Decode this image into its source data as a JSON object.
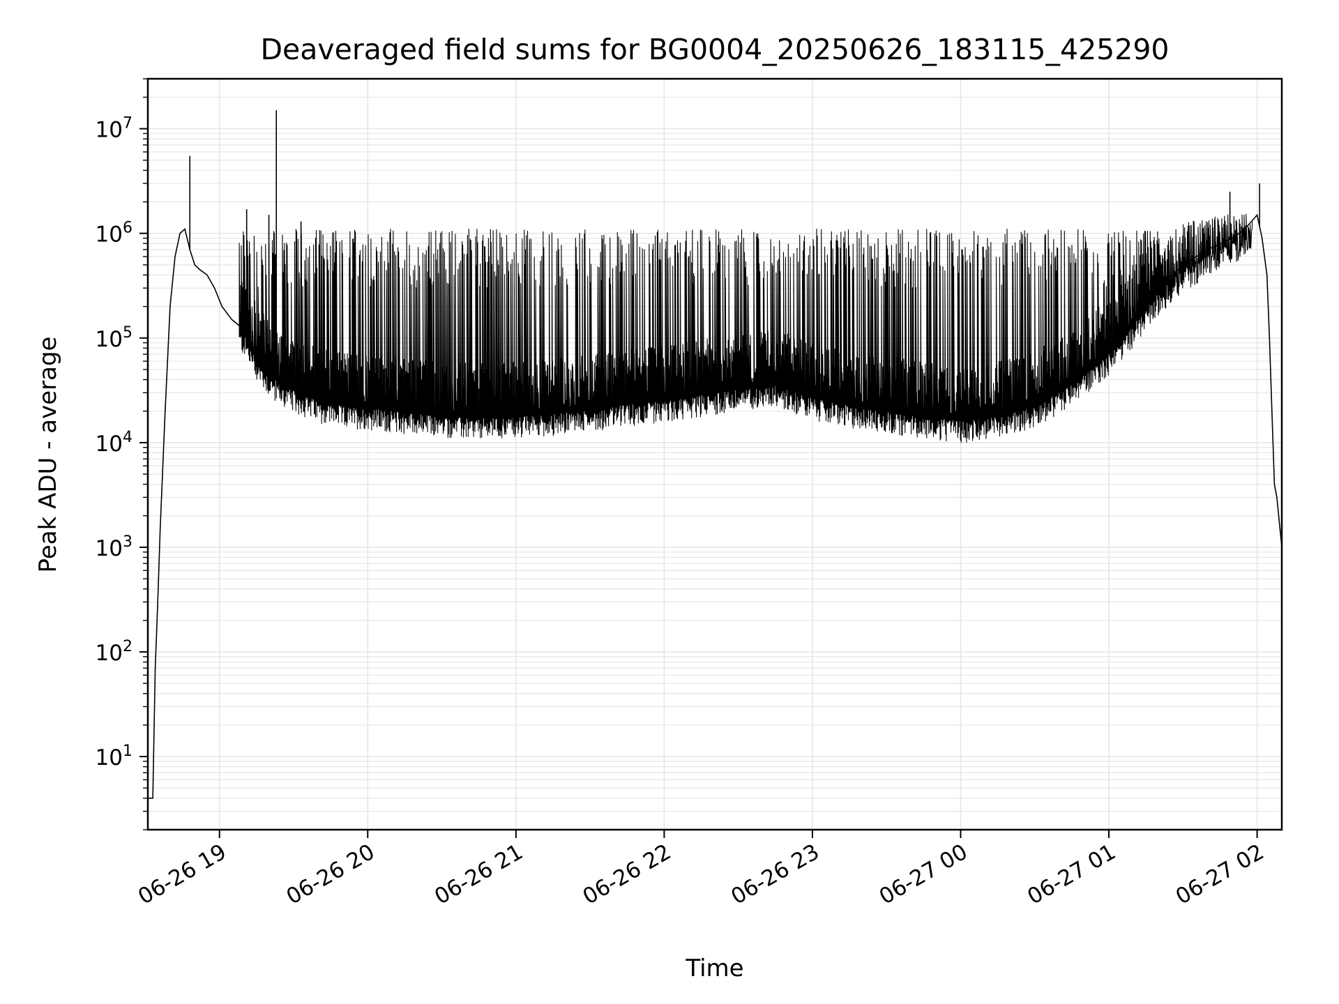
{
  "chart_data": {
    "type": "line",
    "title": "Deaveraged field sums for BG0004_20250626_183115_425290",
    "xlabel": "Time",
    "ylabel": "Peak ADU - average",
    "yscale": "log",
    "xlim": [
      "2025-06-26 18:31",
      "2025-06-27 02:10"
    ],
    "ylim": [
      2,
      30000000
    ],
    "grid": true,
    "line_color": "#000000",
    "grid_color": "#e6e6e6",
    "x_ticks": [
      {
        "value": "2025-06-26 19:00",
        "label": "06-26 19"
      },
      {
        "value": "2025-06-26 20:00",
        "label": "06-26 20"
      },
      {
        "value": "2025-06-26 21:00",
        "label": "06-26 21"
      },
      {
        "value": "2025-06-26 22:00",
        "label": "06-26 22"
      },
      {
        "value": "2025-06-26 23:00",
        "label": "06-26 23"
      },
      {
        "value": "2025-06-27 00:00",
        "label": "06-27 00"
      },
      {
        "value": "2025-06-27 01:00",
        "label": "06-27 01"
      },
      {
        "value": "2025-06-27 02:00",
        "label": "06-27 02"
      }
    ],
    "y_ticks": [
      {
        "value": 10,
        "base": "10",
        "exp": "1"
      },
      {
        "value": 100,
        "base": "10",
        "exp": "2"
      },
      {
        "value": 1000,
        "base": "10",
        "exp": "3"
      },
      {
        "value": 10000,
        "base": "10",
        "exp": "4"
      },
      {
        "value": 100000,
        "base": "10",
        "exp": "5"
      },
      {
        "value": 1000000,
        "base": "10",
        "exp": "6"
      },
      {
        "value": 10000000,
        "base": "10",
        "exp": "7"
      }
    ],
    "series": [
      {
        "x": [
          "2025-06-26 18:31",
          "2025-06-26 18:32",
          "2025-06-26 18:33",
          "2025-06-26 18:34",
          "2025-06-26 18:35",
          "2025-06-26 18:36",
          "2025-06-26 18:38",
          "2025-06-26 18:40",
          "2025-06-26 18:42",
          "2025-06-26 18:44",
          "2025-06-26 18:46",
          "2025-06-26 18:48",
          "2025-06-26 18:50",
          "2025-06-26 18:52",
          "2025-06-26 18:55",
          "2025-06-26 18:58",
          "2025-06-26 19:01",
          "2025-06-26 19:05",
          "2025-06-26 19:10",
          "2025-06-26 19:15",
          "2025-06-26 19:20",
          "2025-06-26 19:25",
          "2025-06-26 19:30",
          "2025-06-26 19:40",
          "2025-06-26 19:50",
          "2025-06-26 20:00",
          "2025-06-26 20:15",
          "2025-06-26 20:30",
          "2025-06-26 20:45",
          "2025-06-26 21:00",
          "2025-06-26 21:15",
          "2025-06-26 21:30",
          "2025-06-26 21:45",
          "2025-06-26 22:00",
          "2025-06-26 22:15",
          "2025-06-26 22:30",
          "2025-06-26 22:45",
          "2025-06-26 23:00",
          "2025-06-26 23:15",
          "2025-06-26 23:30",
          "2025-06-26 23:45",
          "2025-06-27 00:00",
          "2025-06-27 00:15",
          "2025-06-27 00:30",
          "2025-06-27 00:45",
          "2025-06-27 01:00",
          "2025-06-27 01:10",
          "2025-06-27 01:20",
          "2025-06-27 01:30",
          "2025-06-27 01:40",
          "2025-06-27 01:50",
          "2025-06-27 01:55",
          "2025-06-27 02:00",
          "2025-06-27 02:02",
          "2025-06-27 02:04",
          "2025-06-27 02:05",
          "2025-06-27 02:06",
          "2025-06-27 02:07",
          "2025-06-27 02:08",
          "2025-06-27 02:10"
        ],
        "y": [
          4,
          4,
          4,
          70,
          300,
          1500,
          20000,
          200000,
          600000,
          1000000,
          1100000,
          700000,
          500000,
          450000,
          400000,
          300000,
          200000,
          150000,
          120000,
          70000,
          50000,
          40000,
          35000,
          28000,
          25000,
          24000,
          22000,
          20000,
          19000,
          20000,
          21000,
          23000,
          26000,
          28000,
          32000,
          36000,
          40000,
          30000,
          25000,
          22000,
          20000,
          18000,
          20000,
          25000,
          40000,
          80000,
          150000,
          300000,
          500000,
          700000,
          900000,
          1100000,
          1500000,
          900000,
          400000,
          100000,
          20000,
          4000,
          3000,
          1000
        ]
      }
    ],
    "spikes": [
      {
        "x": "2025-06-26 18:48",
        "y": 5500000
      },
      {
        "x": "2025-06-26 19:23",
        "y": 15000000
      },
      {
        "x": "2025-06-26 19:11",
        "y": 1700000
      },
      {
        "x": "2025-06-26 19:20",
        "y": 1500000
      },
      {
        "x": "2025-06-26 19:33",
        "y": 1300000
      },
      {
        "x": "2025-06-27 02:01",
        "y": 3000000
      },
      {
        "x": "2025-06-27 01:49",
        "y": 2500000
      }
    ]
  }
}
